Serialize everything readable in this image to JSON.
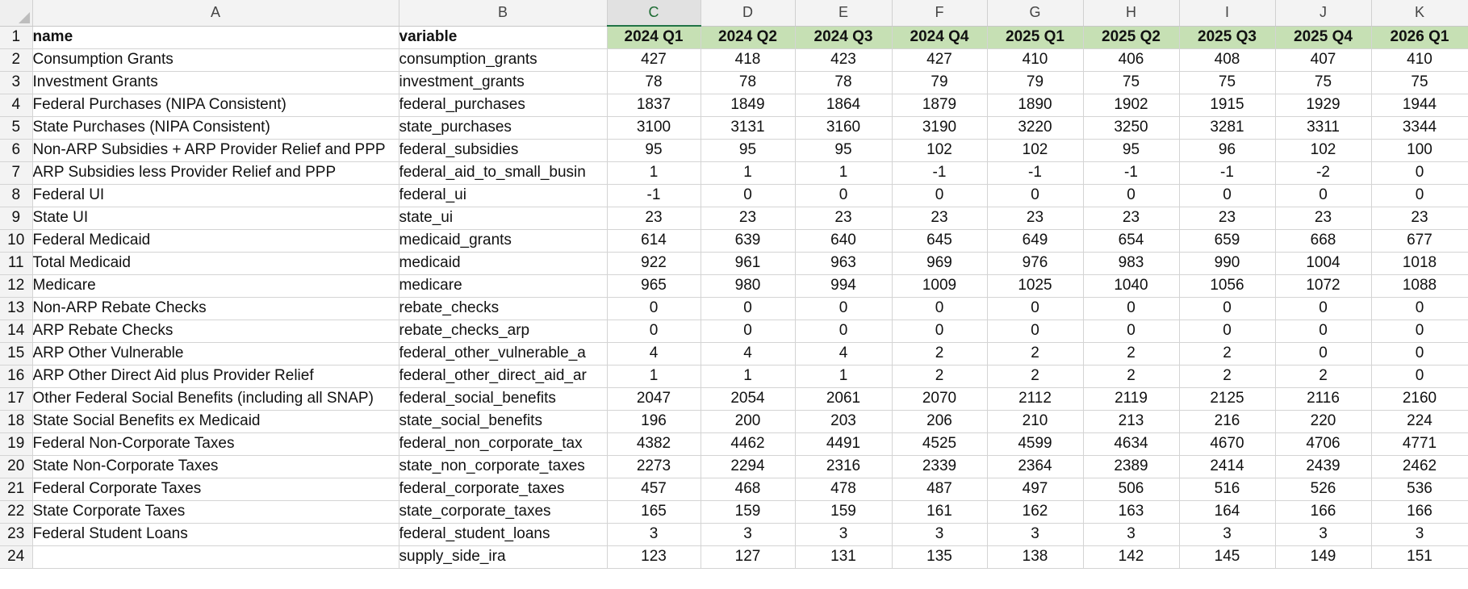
{
  "columns": [
    "A",
    "B",
    "C",
    "D",
    "E",
    "F",
    "G",
    "H",
    "I",
    "J",
    "K"
  ],
  "header": {
    "row": "1",
    "name": "name",
    "variable": "variable",
    "quarters": [
      "2024 Q1",
      "2024 Q2",
      "2024 Q3",
      "2024 Q4",
      "2025 Q1",
      "2025 Q2",
      "2025 Q3",
      "2025 Q4",
      "2026 Q1"
    ]
  },
  "rows": [
    {
      "n": "2",
      "name": "Consumption Grants",
      "variable": "consumption_grants",
      "v": [
        "427",
        "418",
        "423",
        "427",
        "410",
        "406",
        "408",
        "407",
        "410"
      ]
    },
    {
      "n": "3",
      "name": "Investment Grants",
      "variable": "investment_grants",
      "v": [
        "78",
        "78",
        "78",
        "79",
        "79",
        "75",
        "75",
        "75",
        "75"
      ]
    },
    {
      "n": "4",
      "name": "Federal Purchases (NIPA Consistent)",
      "variable": "federal_purchases",
      "v": [
        "1837",
        "1849",
        "1864",
        "1879",
        "1890",
        "1902",
        "1915",
        "1929",
        "1944"
      ]
    },
    {
      "n": "5",
      "name": "State Purchases (NIPA Consistent)",
      "variable": "state_purchases",
      "v": [
        "3100",
        "3131",
        "3160",
        "3190",
        "3220",
        "3250",
        "3281",
        "3311",
        "3344"
      ]
    },
    {
      "n": "6",
      "name": "Non-ARP Subsidies + ARP Provider Relief and PPP",
      "variable": "federal_subsidies",
      "v": [
        "95",
        "95",
        "95",
        "102",
        "102",
        "95",
        "96",
        "102",
        "100"
      ]
    },
    {
      "n": "7",
      "name": "ARP Subsidies less Provider Relief and PPP",
      "variable": "federal_aid_to_small_busin",
      "v": [
        "1",
        "1",
        "1",
        "-1",
        "-1",
        "-1",
        "-1",
        "-2",
        "0"
      ]
    },
    {
      "n": "8",
      "name": "Federal UI",
      "variable": "federal_ui",
      "v": [
        "-1",
        "0",
        "0",
        "0",
        "0",
        "0",
        "0",
        "0",
        "0"
      ]
    },
    {
      "n": "9",
      "name": "State UI",
      "variable": "state_ui",
      "v": [
        "23",
        "23",
        "23",
        "23",
        "23",
        "23",
        "23",
        "23",
        "23"
      ]
    },
    {
      "n": "10",
      "name": "Federal Medicaid",
      "variable": "medicaid_grants",
      "v": [
        "614",
        "639",
        "640",
        "645",
        "649",
        "654",
        "659",
        "668",
        "677"
      ]
    },
    {
      "n": "11",
      "name": "Total Medicaid",
      "variable": "medicaid",
      "v": [
        "922",
        "961",
        "963",
        "969",
        "976",
        "983",
        "990",
        "1004",
        "1018"
      ]
    },
    {
      "n": "12",
      "name": "Medicare",
      "variable": "medicare",
      "v": [
        "965",
        "980",
        "994",
        "1009",
        "1025",
        "1040",
        "1056",
        "1072",
        "1088"
      ]
    },
    {
      "n": "13",
      "name": "Non-ARP Rebate Checks",
      "variable": "rebate_checks",
      "v": [
        "0",
        "0",
        "0",
        "0",
        "0",
        "0",
        "0",
        "0",
        "0"
      ]
    },
    {
      "n": "14",
      "name": "ARP Rebate Checks",
      "variable": "rebate_checks_arp",
      "v": [
        "0",
        "0",
        "0",
        "0",
        "0",
        "0",
        "0",
        "0",
        "0"
      ]
    },
    {
      "n": "15",
      "name": "ARP Other Vulnerable",
      "variable": "federal_other_vulnerable_a",
      "v": [
        "4",
        "4",
        "4",
        "2",
        "2",
        "2",
        "2",
        "0",
        "0"
      ]
    },
    {
      "n": "16",
      "name": "ARP Other Direct Aid plus Provider Relief",
      "variable": "federal_other_direct_aid_ar",
      "v": [
        "1",
        "1",
        "1",
        "2",
        "2",
        "2",
        "2",
        "2",
        "0"
      ]
    },
    {
      "n": "17",
      "name": "Other Federal Social Benefits (including all SNAP)",
      "variable": "federal_social_benefits",
      "v": [
        "2047",
        "2054",
        "2061",
        "2070",
        "2112",
        "2119",
        "2125",
        "2116",
        "2160"
      ]
    },
    {
      "n": "18",
      "name": "State Social Benefits ex Medicaid",
      "variable": "state_social_benefits",
      "v": [
        "196",
        "200",
        "203",
        "206",
        "210",
        "213",
        "216",
        "220",
        "224"
      ]
    },
    {
      "n": "19",
      "name": "Federal Non-Corporate Taxes",
      "variable": "federal_non_corporate_tax",
      "v": [
        "4382",
        "4462",
        "4491",
        "4525",
        "4599",
        "4634",
        "4670",
        "4706",
        "4771"
      ]
    },
    {
      "n": "20",
      "name": "State Non-Corporate Taxes",
      "variable": "state_non_corporate_taxes",
      "v": [
        "2273",
        "2294",
        "2316",
        "2339",
        "2364",
        "2389",
        "2414",
        "2439",
        "2462"
      ]
    },
    {
      "n": "21",
      "name": "Federal Corporate Taxes",
      "variable": "federal_corporate_taxes",
      "v": [
        "457",
        "468",
        "478",
        "487",
        "497",
        "506",
        "516",
        "526",
        "536"
      ]
    },
    {
      "n": "22",
      "name": "State Corporate Taxes",
      "variable": "state_corporate_taxes",
      "v": [
        "165",
        "159",
        "159",
        "161",
        "162",
        "163",
        "164",
        "166",
        "166"
      ]
    },
    {
      "n": "23",
      "name": "Federal Student Loans",
      "variable": "federal_student_loans",
      "v": [
        "3",
        "3",
        "3",
        "3",
        "3",
        "3",
        "3",
        "3",
        "3"
      ]
    },
    {
      "n": "24",
      "name": "",
      "variable": "supply_side_ira",
      "v": [
        "123",
        "127",
        "131",
        "135",
        "138",
        "142",
        "145",
        "149",
        "151"
      ]
    }
  ]
}
